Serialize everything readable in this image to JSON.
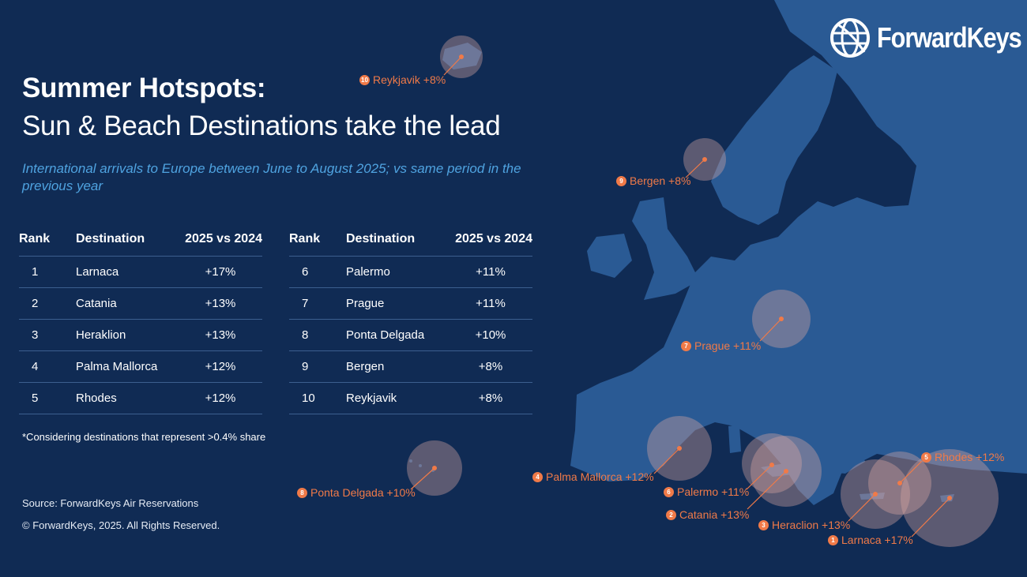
{
  "title": {
    "line1": "Summer Hotspots:",
    "line2": "Sun & Beach Destinations take the lead"
  },
  "subtitle": "International arrivals to Europe between June to August 2025; vs same period in the previous year",
  "table": {
    "headers": {
      "rank": "Rank",
      "destination": "Destination",
      "change": "2025 vs 2024"
    },
    "left": [
      {
        "rank": "1",
        "destination": "Larnaca",
        "change": "+17%"
      },
      {
        "rank": "2",
        "destination": "Catania",
        "change": "+13%"
      },
      {
        "rank": "3",
        "destination": "Heraklion",
        "change": "+13%"
      },
      {
        "rank": "4",
        "destination": "Palma Mallorca",
        "change": "+12%"
      },
      {
        "rank": "5",
        "destination": "Rhodes",
        "change": "+12%"
      }
    ],
    "right": [
      {
        "rank": "6",
        "destination": "Palermo",
        "change": "+11%"
      },
      {
        "rank": "7",
        "destination": "Prague",
        "change": "+11%"
      },
      {
        "rank": "8",
        "destination": "Ponta Delgada",
        "change": "+10%"
      },
      {
        "rank": "9",
        "destination": "Bergen",
        "change": "+8%"
      },
      {
        "rank": "10",
        "destination": "Reykjavik",
        "change": "+8%"
      }
    ]
  },
  "footnote": "*Considering destinations that represent >0.4% share",
  "source": "Source: ForwardKeys Air Reservations",
  "copyright": "© ForwardKeys, 2025. All Rights Reserved.",
  "logo": {
    "text": "ForwardKeys",
    "icon": "globe-icon"
  },
  "map_labels": [
    {
      "rank": "10",
      "text": "Reykjavik +8%"
    },
    {
      "rank": "9",
      "text": "Bergen +8%"
    },
    {
      "rank": "7",
      "text": "Prague +11%"
    },
    {
      "rank": "4",
      "text": "Palma Mallorca +12%"
    },
    {
      "rank": "8",
      "text": "Ponta Delgada +10%"
    },
    {
      "rank": "6",
      "text": "Palermo +11%"
    },
    {
      "rank": "2",
      "text": "Catania +13%"
    },
    {
      "rank": "3",
      "text": "Heraclion +13%"
    },
    {
      "rank": "1",
      "text": "Larnaca +17%"
    },
    {
      "rank": "5",
      "text": "Rhodes +12%"
    }
  ],
  "colors": {
    "background": "#102b54",
    "land": "#2a5a94",
    "accent": "#f07a48",
    "subtitle": "#4fa3e0"
  }
}
